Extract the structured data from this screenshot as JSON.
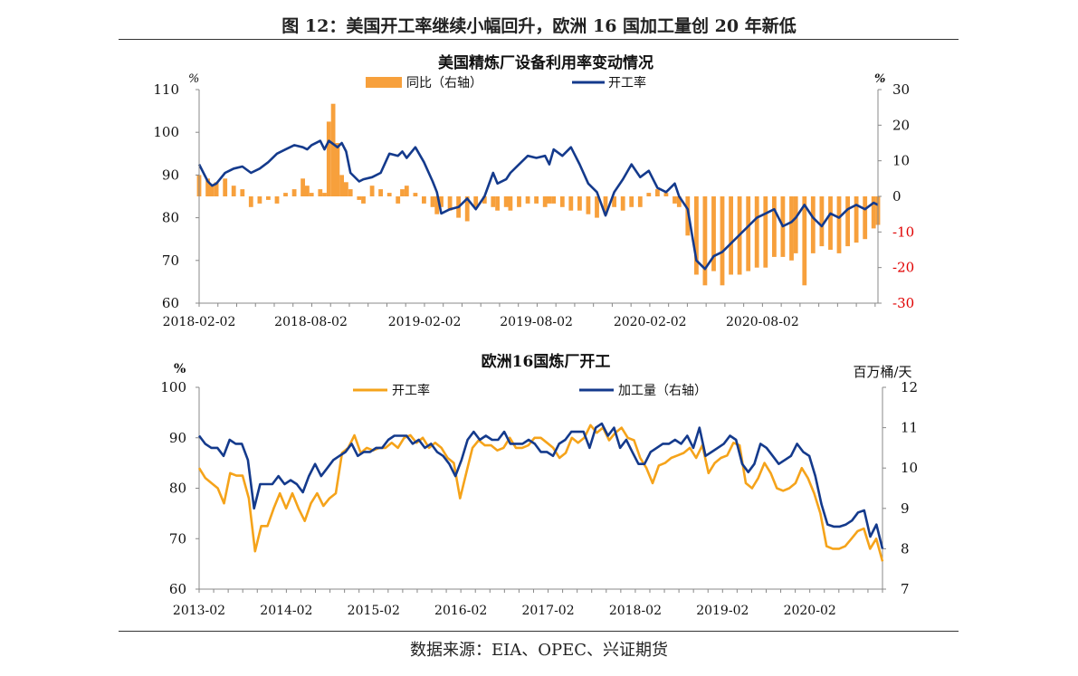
{
  "figure_title": "图 12：美国开工率继续小幅回升，欧洲 16 国加工量创 20 年新低",
  "source": "数据来源：EIA、OPEC、兴证期货",
  "colors": {
    "orange": "#f7a03c",
    "orange_line": "#f5a31a",
    "navy": "#143a8c",
    "red_tick": "#e00000"
  },
  "chart_data": [
    {
      "type": "bar+line",
      "title": "美国精炼厂设备利用率变动情况",
      "left_unit": "%",
      "right_unit": "%",
      "left_ticks": [
        "110",
        "100",
        "90",
        "80",
        "70",
        "60"
      ],
      "right_ticks": [
        "30",
        "20",
        "10",
        "0",
        "-10",
        "-20",
        "-30"
      ],
      "ylim_left": [
        60,
        110
      ],
      "ylim_right": [
        -30,
        30
      ],
      "x_ticks": [
        "2018-02-02",
        "2018-08-02",
        "2019-02-02",
        "2019-08-02",
        "2020-02-02",
        "2020-08-02"
      ],
      "legend": [
        "同比（右轴）",
        "开工率"
      ],
      "legend_placement": "top-center",
      "x_start": "2018-02-02",
      "x_end": "2021-02-05",
      "series_line": {
        "name": "开工率",
        "points": [
          [
            "2018-02-02",
            92.5
          ],
          [
            "2018-02-16",
            88.5
          ],
          [
            "2018-02-23",
            87.5
          ],
          [
            "2018-03-02",
            88
          ],
          [
            "2018-03-16",
            90.5
          ],
          [
            "2018-03-30",
            91.5
          ],
          [
            "2018-04-13",
            92
          ],
          [
            "2018-04-27",
            90.5
          ],
          [
            "2018-05-11",
            91.5
          ],
          [
            "2018-05-25",
            93
          ],
          [
            "2018-06-08",
            95
          ],
          [
            "2018-06-22",
            96
          ],
          [
            "2018-07-06",
            97
          ],
          [
            "2018-07-20",
            96.5
          ],
          [
            "2018-07-27",
            96
          ],
          [
            "2018-08-03",
            97
          ],
          [
            "2018-08-17",
            98
          ],
          [
            "2018-08-24",
            96
          ],
          [
            "2018-08-31",
            98
          ],
          [
            "2018-09-14",
            96.5
          ],
          [
            "2018-09-21",
            97.5
          ],
          [
            "2018-09-28",
            95.5
          ],
          [
            "2018-10-05",
            90.5
          ],
          [
            "2018-10-19",
            88.5
          ],
          [
            "2018-10-26",
            89
          ],
          [
            "2018-11-09",
            89.5
          ],
          [
            "2018-11-23",
            90.5
          ],
          [
            "2018-12-07",
            95
          ],
          [
            "2018-12-21",
            94.5
          ],
          [
            "2018-12-28",
            95.5
          ],
          [
            "2019-01-04",
            94
          ],
          [
            "2019-01-18",
            96.5
          ],
          [
            "2019-02-01",
            93
          ],
          [
            "2019-02-15",
            88.5
          ],
          [
            "2019-02-22",
            86
          ],
          [
            "2019-03-01",
            81
          ],
          [
            "2019-03-15",
            82
          ],
          [
            "2019-03-29",
            82.5
          ],
          [
            "2019-04-12",
            84.5
          ],
          [
            "2019-04-26",
            82
          ],
          [
            "2019-05-10",
            85
          ],
          [
            "2019-05-24",
            90.5
          ],
          [
            "2019-05-31",
            88
          ],
          [
            "2019-06-14",
            89
          ],
          [
            "2019-06-21",
            90.5
          ],
          [
            "2019-07-05",
            92.5
          ],
          [
            "2019-07-19",
            94.5
          ],
          [
            "2019-08-02",
            94
          ],
          [
            "2019-08-16",
            94.5
          ],
          [
            "2019-08-23",
            92.5
          ],
          [
            "2019-08-30",
            96
          ],
          [
            "2019-09-13",
            94.5
          ],
          [
            "2019-09-27",
            96.5
          ],
          [
            "2019-10-11",
            92.5
          ],
          [
            "2019-10-25",
            88
          ],
          [
            "2019-11-08",
            86
          ],
          [
            "2019-11-22",
            80.5
          ],
          [
            "2019-12-06",
            86
          ],
          [
            "2019-12-20",
            89
          ],
          [
            "2020-01-03",
            92.5
          ],
          [
            "2020-01-17",
            89.5
          ],
          [
            "2020-01-31",
            91
          ],
          [
            "2020-02-14",
            87
          ],
          [
            "2020-02-28",
            86
          ],
          [
            "2020-03-13",
            88
          ],
          [
            "2020-03-20",
            85
          ],
          [
            "2020-04-03",
            82
          ],
          [
            "2020-04-17",
            70
          ],
          [
            "2020-05-01",
            68
          ],
          [
            "2020-05-15",
            71
          ],
          [
            "2020-05-29",
            72
          ],
          [
            "2020-06-12",
            74
          ],
          [
            "2020-06-26",
            76
          ],
          [
            "2020-07-10",
            78
          ],
          [
            "2020-07-24",
            80
          ],
          [
            "2020-08-07",
            81
          ],
          [
            "2020-08-21",
            82
          ],
          [
            "2020-09-04",
            78
          ],
          [
            "2020-09-18",
            79
          ],
          [
            "2020-09-25",
            80
          ],
          [
            "2020-10-09",
            83
          ],
          [
            "2020-10-23",
            80
          ],
          [
            "2020-11-06",
            78
          ],
          [
            "2020-11-20",
            81
          ],
          [
            "2020-12-04",
            80
          ],
          [
            "2020-12-18",
            82
          ],
          [
            "2021-01-01",
            83
          ],
          [
            "2021-01-15",
            82
          ],
          [
            "2021-01-29",
            83.5
          ],
          [
            "2021-02-05",
            83
          ]
        ]
      },
      "series_bar": {
        "name": "同比（右轴）",
        "points": [
          [
            "2018-02-02",
            6
          ],
          [
            "2018-02-16",
            5
          ],
          [
            "2018-02-23",
            3
          ],
          [
            "2018-03-02",
            4
          ],
          [
            "2018-03-16",
            5
          ],
          [
            "2018-03-30",
            3
          ],
          [
            "2018-04-13",
            2
          ],
          [
            "2018-04-27",
            -3
          ],
          [
            "2018-05-11",
            -2
          ],
          [
            "2018-05-25",
            -1
          ],
          [
            "2018-06-08",
            -2
          ],
          [
            "2018-06-22",
            1
          ],
          [
            "2018-07-06",
            2
          ],
          [
            "2018-07-20",
            5
          ],
          [
            "2018-07-27",
            3
          ],
          [
            "2018-08-03",
            1
          ],
          [
            "2018-08-17",
            2
          ],
          [
            "2018-08-24",
            1
          ],
          [
            "2018-08-31",
            21
          ],
          [
            "2018-09-07",
            26
          ],
          [
            "2018-09-14",
            15
          ],
          [
            "2018-09-21",
            6
          ],
          [
            "2018-09-28",
            4
          ],
          [
            "2018-10-05",
            2
          ],
          [
            "2018-10-19",
            -1
          ],
          [
            "2018-10-26",
            -2
          ],
          [
            "2018-11-09",
            3
          ],
          [
            "2018-11-23",
            2
          ],
          [
            "2018-12-07",
            1
          ],
          [
            "2018-12-21",
            -2
          ],
          [
            "2018-12-28",
            2
          ],
          [
            "2019-01-04",
            3
          ],
          [
            "2019-01-18",
            1
          ],
          [
            "2019-02-01",
            -2
          ],
          [
            "2019-02-15",
            -3
          ],
          [
            "2019-02-22",
            -5
          ],
          [
            "2019-03-01",
            -3
          ],
          [
            "2019-03-15",
            -4
          ],
          [
            "2019-03-29",
            -6
          ],
          [
            "2019-04-12",
            -7
          ],
          [
            "2019-04-26",
            -3
          ],
          [
            "2019-05-10",
            -2
          ],
          [
            "2019-05-24",
            -3
          ],
          [
            "2019-05-31",
            -4
          ],
          [
            "2019-06-14",
            -3
          ],
          [
            "2019-06-21",
            -4
          ],
          [
            "2019-07-05",
            -3
          ],
          [
            "2019-07-19",
            -2
          ],
          [
            "2019-08-02",
            -2
          ],
          [
            "2019-08-16",
            -3
          ],
          [
            "2019-08-23",
            -2
          ],
          [
            "2019-08-30",
            -2
          ],
          [
            "2019-09-13",
            -3
          ],
          [
            "2019-09-27",
            -4
          ],
          [
            "2019-10-11",
            -4
          ],
          [
            "2019-10-25",
            -5
          ],
          [
            "2019-11-08",
            -6
          ],
          [
            "2019-11-22",
            -5
          ],
          [
            "2019-12-06",
            -3
          ],
          [
            "2019-12-20",
            -4
          ],
          [
            "2020-01-03",
            -3
          ],
          [
            "2020-01-17",
            -3
          ],
          [
            "2020-01-31",
            1
          ],
          [
            "2020-02-14",
            2
          ],
          [
            "2020-02-28",
            1
          ],
          [
            "2020-03-13",
            -2
          ],
          [
            "2020-03-20",
            -3
          ],
          [
            "2020-04-03",
            -11
          ],
          [
            "2020-04-17",
            -22
          ],
          [
            "2020-05-01",
            -25
          ],
          [
            "2020-05-15",
            -21
          ],
          [
            "2020-05-29",
            -25
          ],
          [
            "2020-06-12",
            -22
          ],
          [
            "2020-06-26",
            -22
          ],
          [
            "2020-07-10",
            -21
          ],
          [
            "2020-07-24",
            -20
          ],
          [
            "2020-08-07",
            -20
          ],
          [
            "2020-08-21",
            -17
          ],
          [
            "2020-09-04",
            -17
          ],
          [
            "2020-09-18",
            -18
          ],
          [
            "2020-09-25",
            -16
          ],
          [
            "2020-10-09",
            -25
          ],
          [
            "2020-10-23",
            -16
          ],
          [
            "2020-11-06",
            -14
          ],
          [
            "2020-11-20",
            -15
          ],
          [
            "2020-12-04",
            -16
          ],
          [
            "2020-12-18",
            -14
          ],
          [
            "2021-01-01",
            -13
          ],
          [
            "2021-01-15",
            -12
          ],
          [
            "2021-01-29",
            -9
          ],
          [
            "2021-02-05",
            -8
          ]
        ]
      }
    },
    {
      "type": "line",
      "title": "欧洲16国炼厂开工",
      "left_unit": "%",
      "right_unit": "百万桶/天",
      "left_ticks": [
        "100",
        "90",
        "80",
        "70",
        "60"
      ],
      "right_ticks": [
        "12",
        "11",
        "10",
        "9",
        "8",
        "7"
      ],
      "ylim_left": [
        60,
        100
      ],
      "ylim_right": [
        7,
        12
      ],
      "x_ticks": [
        "2013-02",
        "2014-02",
        "2015-02",
        "2016-02",
        "2017-02",
        "2018-02",
        "2019-02",
        "2020-02"
      ],
      "legend": [
        "开工率",
        "加工量（右轴）"
      ],
      "legend_placement": "top-center",
      "x_start": "2013-02",
      "x_end": "2020-12",
      "series": [
        {
          "name": "开工率",
          "axis": "left",
          "values": [
            84,
            82,
            81,
            80,
            77,
            83,
            82.5,
            82.5,
            78,
            67.5,
            72.5,
            72.5,
            76,
            79,
            76,
            79,
            76,
            73.5,
            77,
            79,
            76.5,
            78,
            79,
            87,
            88,
            90.5,
            87,
            88,
            87.5,
            88,
            88,
            89,
            88,
            90,
            90.5,
            89,
            90,
            88,
            89,
            88,
            86,
            85,
            78,
            83,
            88,
            89.5,
            88.5,
            88.5,
            87.5,
            88,
            90,
            88,
            88,
            88.5,
            90,
            90,
            89,
            88,
            86,
            87,
            90,
            89,
            90,
            92.5,
            91,
            92,
            89.5,
            91,
            92,
            90,
            89.5,
            86,
            84,
            81,
            84.5,
            85,
            86,
            86.5,
            87,
            88,
            86,
            88.5,
            83,
            85,
            86,
            86.5,
            89,
            88.5,
            81,
            80,
            82,
            85,
            83,
            80,
            79.5,
            80,
            81,
            84,
            82,
            79,
            75,
            68.5,
            68,
            68,
            68.5,
            70,
            71.5,
            72,
            68,
            70,
            65.5
          ]
        },
        {
          "name": "加工量（右轴）",
          "axis": "right",
          "values": [
            10.8,
            10.6,
            10.5,
            10.5,
            10.3,
            10.7,
            10.6,
            10.6,
            10.2,
            9,
            9.6,
            9.6,
            9.6,
            9.8,
            9.6,
            9.7,
            9.6,
            9.4,
            9.8,
            10.1,
            9.8,
            10,
            10.2,
            10.3,
            10.4,
            10.6,
            10.3,
            10.4,
            10.4,
            10.5,
            10.5,
            10.7,
            10.8,
            10.8,
            10.8,
            10.6,
            10.7,
            10.5,
            10.6,
            10.4,
            10.3,
            10.1,
            9.8,
            10.2,
            10.7,
            10.9,
            10.7,
            10.8,
            10.7,
            10.7,
            10.9,
            10.6,
            10.6,
            10.6,
            10.7,
            10.6,
            10.4,
            10.4,
            10.3,
            10.6,
            10.7,
            10.9,
            10.9,
            10.9,
            10.5,
            11,
            11.1,
            10.8,
            11,
            10.5,
            10.7,
            10.4,
            10.1,
            10.1,
            10.4,
            10.5,
            10.6,
            10.6,
            10.7,
            10.6,
            10.8,
            10.5,
            11,
            10.3,
            10.4,
            10.5,
            10.6,
            10.8,
            10.7,
            10.1,
            9.9,
            10.1,
            10.6,
            10.5,
            10.3,
            10.1,
            10.2,
            10.3,
            10.6,
            10.4,
            10.3,
            9.8,
            9.1,
            8.6,
            8.55,
            8.55,
            8.6,
            8.7,
            8.9,
            8.95,
            8.3,
            8.6,
            8
          ]
        }
      ]
    }
  ]
}
